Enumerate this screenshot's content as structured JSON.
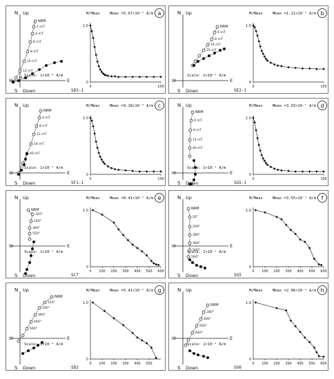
{
  "figure": {
    "panels": [
      {
        "letter": "a",
        "sample": "SD3-1",
        "mmax": "Mmax =5.67×10⁻² A/m",
        "scale": "Scale: 1×10⁻² A/m",
        "nrm_label": "NRM",
        "step_labels": [
          "2 mT",
          "4 mT",
          "6 mT",
          "8 mT",
          "10 mT",
          "12 mT",
          "14 mT"
        ],
        "y_axis_label": "M/Mmax",
        "x_ticks": [
          "0",
          "100"
        ],
        "y_ticks": [
          "0",
          "1.0"
        ],
        "axes": {
          "up": "Up",
          "down": "Down",
          "n": "N",
          "s": "S",
          "w": "W",
          "e": "E"
        }
      },
      {
        "letter": "b",
        "sample": "SE2-1",
        "mmax": "Mmax =1.11×10⁻¹ A/m",
        "scale": "Scale: 1×10⁻¹ A/m",
        "nrm_label": "NRM",
        "step_labels": [
          "6 mT",
          "8 mT",
          "14 mT",
          "25 mT"
        ],
        "y_axis_label": "M/Mmax",
        "x_ticks": [
          "0",
          "100"
        ],
        "y_ticks": [
          "0",
          "1.0"
        ],
        "axes": {
          "up": "Up",
          "down": "Down",
          "n": "N",
          "s": "S",
          "w": "W",
          "e": "E"
        }
      },
      {
        "letter": "c",
        "sample": "SF1-1",
        "mmax": "Mmax =9.18×10⁻² A/m",
        "scale": "Scale: 1×10⁻² A/m",
        "nrm_label": "NRM",
        "step_labels": [
          "4 mT",
          "8 mT",
          "12 mT",
          "14 mT",
          "40 mT"
        ],
        "y_axis_label": "M/Mmax",
        "x_ticks": [
          "0",
          "100"
        ],
        "y_ticks": [
          "0",
          "1.0"
        ],
        "axes": {
          "up": "Up",
          "down": "Down",
          "n": "N",
          "s": "S",
          "w": "W",
          "e": "E"
        }
      },
      {
        "letter": "d",
        "sample": "SG5-1",
        "mmax": "Mmax =3.33×10⁻¹ A/m",
        "scale": "Scale: 1×10⁻¹ A/m",
        "nrm_label": "NRM",
        "step_labels": [
          "4 mT",
          "8 mT",
          "14 mT",
          "40 mT"
        ],
        "y_axis_label": "M/Mmax",
        "x_ticks": [
          "0",
          "100"
        ],
        "y_ticks": [
          "0",
          "1.0"
        ],
        "axes": {
          "up": "Up",
          "down": "Down",
          "n": "N",
          "s": "S",
          "w": "W",
          "e": "E"
        }
      },
      {
        "letter": "e",
        "sample": "SC7",
        "mmax": "Mmax =8.41×10⁻¹ A/m",
        "scale": "Scale: 1×10⁻¹ A/m",
        "nrm_label": "NRM",
        "step_labels": [
          "320°",
          "240°",
          "360°",
          "520°"
        ],
        "y_axis_label": "M/Mmax",
        "x_ticks": [
          "0",
          "100",
          "200",
          "300",
          "400",
          "500",
          "600"
        ],
        "y_ticks": [
          "0",
          "1.0"
        ],
        "axes": {
          "up": "Up",
          "down": "Down",
          "n": "N",
          "s": "S",
          "w": "W",
          "e": "E"
        }
      },
      {
        "letter": "f",
        "sample": "SG5",
        "mmax": "Mmax =3.55×10⁻¹ A/m",
        "scale": "Scale: 1×10⁻¹ A/m",
        "nrm_label": "NRM",
        "step_labels": [
          "20°",
          "200°",
          "280°",
          "360°",
          "500°",
          "560°"
        ],
        "y_axis_label": "M/Mmax",
        "x_ticks": [
          "0",
          "100",
          "200",
          "300",
          "400",
          "500",
          "600"
        ],
        "y_ticks": [
          "0",
          "1.0"
        ],
        "axes": {
          "up": "Up",
          "down": "Down",
          "n": "N",
          "s": "S",
          "w": "W",
          "e": "E"
        }
      },
      {
        "letter": "g",
        "sample": "SD2",
        "mmax": "Mmax =5.41×10⁻² A/m",
        "scale": "Scale: 1×10⁻² A/m",
        "nrm_label": "NRM",
        "step_labels": [
          "120°",
          "200°",
          "360°",
          "440°",
          "560°"
        ],
        "y_axis_label": "M/Mmax",
        "x_ticks": [
          "0",
          "100",
          "200",
          "300",
          "400",
          "500"
        ],
        "y_ticks": [
          "0",
          "1.0"
        ],
        "axes": {
          "up": "Up",
          "down": "Down",
          "n": "N",
          "s": "S",
          "w": "W",
          "e": "E"
        }
      },
      {
        "letter": "h",
        "sample": "SG6",
        "mmax": "Mmax =2.96×10⁻¹ A/m",
        "scale": "Scale: 1×10⁻¹ A/m",
        "nrm_label": "NRM",
        "step_labels": [
          "280°",
          "400°",
          "540°",
          "640°"
        ],
        "y_axis_label": "M/Mmax",
        "x_ticks": [
          "0",
          "100",
          "200",
          "300",
          "400",
          "500",
          "600"
        ],
        "y_ticks": [
          "0",
          "1.0"
        ],
        "axes": {
          "up": "Up",
          "down": "Down",
          "n": "N",
          "s": "S",
          "w": "W",
          "e": "E"
        }
      }
    ]
  },
  "chart_data": [
    {
      "type": "line",
      "title": "",
      "xlabel": "",
      "ylabel": "M/Mmax",
      "xlim": [
        0,
        100
      ],
      "ylim": [
        0,
        1.0
      ],
      "x": [
        0,
        2,
        4,
        6,
        8,
        10,
        12,
        14,
        16,
        18,
        20,
        22,
        25,
        30,
        35,
        40,
        50,
        60,
        70,
        80,
        90,
        100
      ],
      "series": [
        {
          "values": [
            1.0,
            0.9,
            0.78,
            0.62,
            0.48,
            0.36,
            0.28,
            0.22,
            0.18,
            0.15,
            0.13,
            0.12,
            0.11,
            0.1,
            0.1,
            0.09,
            0.09,
            0.09,
            0.09,
            0.09,
            0.09,
            0.09
          ]
        }
      ]
    },
    {
      "type": "line",
      "title": "",
      "xlabel": "",
      "ylabel": "M/Mmax",
      "xlim": [
        0,
        100
      ],
      "ylim": [
        0,
        1.0
      ],
      "x": [
        0,
        2,
        4,
        6,
        8,
        10,
        12,
        14,
        16,
        18,
        20,
        25,
        30,
        35,
        40,
        50,
        60,
        70,
        80,
        90,
        100
      ],
      "series": [
        {
          "values": [
            1.0,
            0.97,
            0.9,
            0.82,
            0.72,
            0.63,
            0.55,
            0.5,
            0.45,
            0.41,
            0.38,
            0.34,
            0.31,
            0.29,
            0.28,
            0.26,
            0.25,
            0.24,
            0.24,
            0.23,
            0.23
          ]
        }
      ]
    },
    {
      "type": "line",
      "title": "",
      "xlabel": "",
      "ylabel": "M/Mmax",
      "xlim": [
        0,
        100
      ],
      "ylim": [
        0,
        1.0
      ],
      "x": [
        0,
        2,
        4,
        6,
        8,
        10,
        12,
        14,
        16,
        18,
        20,
        25,
        30,
        35,
        40,
        50,
        60,
        70,
        80,
        90,
        100
      ],
      "series": [
        {
          "values": [
            1.0,
            0.95,
            0.85,
            0.72,
            0.58,
            0.47,
            0.38,
            0.31,
            0.26,
            0.22,
            0.19,
            0.14,
            0.11,
            0.09,
            0.08,
            0.07,
            0.06,
            0.05,
            0.05,
            0.05,
            0.05
          ]
        }
      ]
    },
    {
      "type": "line",
      "title": "",
      "xlabel": "",
      "ylabel": "M/Mmax",
      "xlim": [
        0,
        100
      ],
      "ylim": [
        0,
        1.0
      ],
      "x": [
        0,
        2,
        4,
        6,
        8,
        10,
        12,
        14,
        16,
        18,
        20,
        25,
        30,
        35,
        40,
        50,
        60,
        70,
        80,
        90,
        100
      ],
      "series": [
        {
          "values": [
            1.0,
            0.92,
            0.78,
            0.64,
            0.52,
            0.42,
            0.34,
            0.28,
            0.24,
            0.2,
            0.17,
            0.13,
            0.1,
            0.08,
            0.07,
            0.06,
            0.05,
            0.05,
            0.05,
            0.05,
            0.05
          ]
        }
      ]
    },
    {
      "type": "line",
      "title": "",
      "xlabel": "",
      "ylabel": "M/Mmax",
      "xlim": [
        0,
        600
      ],
      "ylim": [
        0,
        1.0
      ],
      "x": [
        20,
        100,
        200,
        240,
        280,
        320,
        360,
        400,
        440,
        480,
        520,
        540,
        560,
        580
      ],
      "series": [
        {
          "values": [
            1.0,
            0.92,
            0.78,
            0.66,
            0.56,
            0.47,
            0.39,
            0.33,
            0.27,
            0.2,
            0.1,
            0.06,
            0.04,
            0.03
          ]
        }
      ]
    },
    {
      "type": "line",
      "title": "",
      "xlabel": "",
      "ylabel": "M/Mmax",
      "xlim": [
        0,
        600
      ],
      "ylim": [
        0,
        1.0
      ],
      "x": [
        20,
        100,
        200,
        240,
        280,
        320,
        360,
        400,
        440,
        480,
        520,
        560,
        580
      ],
      "series": [
        {
          "values": [
            1.0,
            0.96,
            0.88,
            0.84,
            0.74,
            0.65,
            0.58,
            0.48,
            0.44,
            0.33,
            0.14,
            0.04,
            0.03
          ]
        }
      ]
    },
    {
      "type": "line",
      "title": "",
      "xlabel": "",
      "ylabel": "M/Mmax",
      "xlim": [
        0,
        600
      ],
      "ylim": [
        0,
        1.0
      ],
      "x": [
        20,
        120,
        200,
        280,
        360,
        400,
        440,
        480,
        520,
        560
      ],
      "series": [
        {
          "values": [
            1.0,
            0.85,
            0.72,
            0.6,
            0.46,
            0.38,
            0.33,
            0.28,
            0.2,
            0.02
          ]
        }
      ]
    },
    {
      "type": "line",
      "title": "",
      "xlabel": "",
      "ylabel": "M/Mmax",
      "xlim": [
        0,
        600
      ],
      "ylim": [
        0,
        1.0
      ],
      "x": [
        20,
        200,
        280,
        320,
        360,
        400,
        440,
        480,
        520,
        540,
        560,
        600
      ],
      "series": [
        {
          "values": [
            1.0,
            0.9,
            0.86,
            0.68,
            0.58,
            0.48,
            0.38,
            0.3,
            0.2,
            0.12,
            0.05,
            0.04
          ]
        }
      ]
    }
  ]
}
